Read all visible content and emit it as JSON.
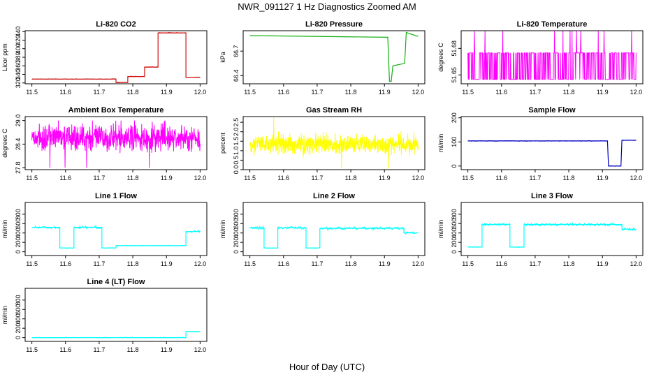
{
  "page": {
    "title": "NWR_091127  1 Hz Diagnostics Zoomed AM",
    "xlabel": "Hour of Day (UTC)"
  },
  "colors": {
    "co2": "#d01010",
    "pressure": "#10b010",
    "temperature": "#ff00ff",
    "rh": "#ffff00",
    "sample_flow": "#0000c0",
    "line_flow": "#00ffff"
  },
  "chart_data": [
    {
      "type": "line",
      "title": "Li-820 CO2",
      "ylabel": "Licor ppm",
      "xlim": [
        11.5,
        12.0
      ],
      "ylim": [
        318,
        442
      ],
      "xticks": [
        "11.5",
        "11.6",
        "11.7",
        "11.8",
        "11.9",
        "12.0"
      ],
      "yticks": [
        "320",
        "340",
        "360",
        "380",
        "400",
        "420",
        "440"
      ],
      "color": "#d01010",
      "series": [
        {
          "x": [
            11.5,
            11.75,
            11.75,
            11.785,
            11.785,
            11.835,
            11.835,
            11.875,
            11.875,
            11.958,
            11.958,
            12.0
          ],
          "y": [
            329,
            329,
            321,
            321,
            335,
            335,
            357,
            357,
            437,
            437,
            333,
            333
          ]
        }
      ]
    },
    {
      "type": "line",
      "title": "Li-820 Pressure",
      "ylabel": "kPa",
      "xlim": [
        11.5,
        12.0
      ],
      "ylim": [
        66.3,
        66.95
      ],
      "xticks": [
        "11.5",
        "11.6",
        "11.7",
        "11.8",
        "11.9",
        "12.0"
      ],
      "yticks": [
        "66.4",
        "66.7"
      ],
      "color": "#10b010",
      "series": [
        {
          "x": [
            11.5,
            11.91,
            11.915,
            11.92,
            11.925,
            11.96,
            11.965,
            11.97,
            12.0
          ],
          "y": [
            66.89,
            66.87,
            66.33,
            66.33,
            66.52,
            66.55,
            66.93,
            66.92,
            66.88
          ]
        }
      ]
    },
    {
      "type": "line",
      "title": "Li-820 Temperature",
      "ylabel": "degrees C",
      "xlim": [
        11.5,
        12.0
      ],
      "ylim": [
        51.64,
        51.7
      ],
      "xticks": [
        "11.5",
        "11.6",
        "11.7",
        "11.8",
        "11.9",
        "12.0"
      ],
      "yticks": [
        "51.65",
        "51.68"
      ],
      "color": "#ff00ff",
      "series": [
        {
          "levels": [
            51.645,
            51.675
          ],
          "spikes": [
            51.69
          ]
        }
      ]
    },
    {
      "type": "line",
      "title": "Ambient Box Temperature",
      "ylabel": "degrees C",
      "xlim": [
        11.5,
        12.0
      ],
      "ylim": [
        27.75,
        29.1
      ],
      "xticks": [
        "11.5",
        "11.6",
        "11.7",
        "11.8",
        "11.9",
        "12.0"
      ],
      "yticks": [
        "27.8",
        "28.4",
        "29.0"
      ],
      "color": "#ff00ff",
      "series": [
        {
          "mean": 28.55,
          "noise": 0.25,
          "min": 27.8,
          "max": 29.0
        }
      ]
    },
    {
      "type": "line",
      "title": "Gas Stream RH",
      "ylabel": "percent",
      "xlim": [
        11.5,
        12.0
      ],
      "ylim": [
        0,
        2.8
      ],
      "xticks": [
        "11.5",
        "11.6",
        "11.7",
        "11.8",
        "11.9",
        "12.0"
      ],
      "yticks": [
        "0.0",
        "0.5",
        "1.0",
        "1.5",
        "2.0",
        "2.5"
      ],
      "color": "#ffff00",
      "series": [
        {
          "mean": 1.35,
          "noise": 0.4,
          "min": 0.05,
          "max": 2.75
        }
      ]
    },
    {
      "type": "line",
      "title": "Sample Flow",
      "ylabel": "ml/min",
      "xlim": [
        11.5,
        12.0
      ],
      "ylim": [
        -15,
        205
      ],
      "xticks": [
        "11.5",
        "11.6",
        "11.7",
        "11.8",
        "11.9",
        "12.0"
      ],
      "yticks": [
        "0",
        "100",
        "200"
      ],
      "color": "#0000c0",
      "series": [
        {
          "x": [
            11.5,
            11.915,
            11.918,
            11.955,
            11.958,
            12.0
          ],
          "y": [
            104,
            104,
            0,
            0,
            107,
            107
          ]
        }
      ]
    },
    {
      "type": "line",
      "title": "Line 1 Flow",
      "ylabel": "ml/min",
      "xlim": [
        11.5,
        12.0
      ],
      "ylim": [
        -80,
        1050
      ],
      "xticks": [
        "11.5",
        "11.6",
        "11.7",
        "11.8",
        "11.9",
        "12.0"
      ],
      "yticks": [
        "0",
        "200",
        "400",
        "600",
        "800"
      ],
      "color": "#00ffff",
      "series": [
        {
          "x": [
            11.5,
            11.583,
            11.583,
            11.625,
            11.625,
            11.708,
            11.708,
            11.75,
            11.75,
            11.958,
            11.958,
            12.0
          ],
          "y": [
            520,
            520,
            80,
            80,
            520,
            520,
            80,
            80,
            130,
            130,
            430,
            430
          ]
        }
      ]
    },
    {
      "type": "line",
      "title": "Line 2 Flow",
      "ylabel": "ml/min",
      "xlim": [
        11.5,
        12.0
      ],
      "ylim": [
        -80,
        1050
      ],
      "xticks": [
        "11.5",
        "11.6",
        "11.7",
        "11.8",
        "11.9",
        "12.0"
      ],
      "yticks": [
        "0",
        "200",
        "400",
        "600",
        "800"
      ],
      "color": "#00ffff",
      "series": [
        {
          "x": [
            11.5,
            11.542,
            11.542,
            11.583,
            11.583,
            11.667,
            11.667,
            11.708,
            11.708,
            11.958,
            11.958,
            12.0
          ],
          "y": [
            510,
            510,
            80,
            80,
            510,
            510,
            80,
            80,
            500,
            500,
            400,
            400
          ]
        }
      ]
    },
    {
      "type": "line",
      "title": "Line 3 Flow",
      "ylabel": "ml/min",
      "xlim": [
        11.5,
        12.0
      ],
      "ylim": [
        -80,
        1050
      ],
      "xticks": [
        "11.5",
        "11.6",
        "11.7",
        "11.8",
        "11.9",
        "12.0"
      ],
      "yticks": [
        "0",
        "200",
        "400",
        "600",
        "800"
      ],
      "color": "#00ffff",
      "series": [
        {
          "x": [
            11.5,
            11.542,
            11.542,
            11.625,
            11.625,
            11.667,
            11.667,
            11.958,
            11.958,
            12.0
          ],
          "y": [
            100,
            100,
            580,
            580,
            100,
            100,
            580,
            580,
            480,
            480
          ]
        }
      ]
    },
    {
      "type": "line",
      "title": "Line 4 (LT) Flow",
      "ylabel": "ml/min",
      "xlim": [
        11.5,
        12.0
      ],
      "ylim": [
        -80,
        1050
      ],
      "xticks": [
        "11.5",
        "11.6",
        "11.7",
        "11.8",
        "11.9",
        "12.0"
      ],
      "yticks": [
        "0",
        "200",
        "400",
        "600",
        "800"
      ],
      "color": "#00ffff",
      "series": [
        {
          "x": [
            11.5,
            11.958,
            11.958,
            12.0
          ],
          "y": [
            0,
            0,
            130,
            130
          ]
        }
      ]
    }
  ]
}
